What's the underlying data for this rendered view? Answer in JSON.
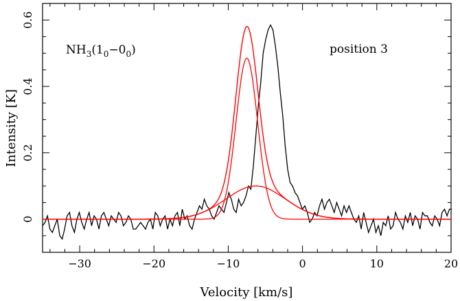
{
  "chart_data": {
    "type": "line",
    "title": "",
    "xlabel": "Velocity [km/s]",
    "ylabel": "Intensity [K]",
    "xlim": [
      -35,
      20
    ],
    "ylim": [
      -0.1,
      0.65
    ],
    "grid": false,
    "legend": "none",
    "x_ticks": [
      -30,
      -20,
      -10,
      0,
      10,
      20
    ],
    "x_tick_labels": [
      "−30",
      "−20",
      "−10",
      "0",
      "10",
      "20"
    ],
    "y_ticks": [
      0,
      0.2,
      0.4,
      0.6
    ],
    "y_tick_labels": [
      "0",
      "0.2",
      "0.4",
      "0.6"
    ],
    "annotations": {
      "molecule": {
        "base": "NH",
        "sub1": "3",
        "open": "(1",
        "sub2": "0",
        "mid": "−0",
        "sub3": "0",
        "close": ")"
      },
      "position": "position 3"
    },
    "colors": {
      "observed": "#000000",
      "fit": "#ff0000"
    },
    "observed_series": {
      "x_start": -35.0,
      "x_step": 0.33,
      "values": [
        -0.02,
        -0.01,
        0.01,
        -0.03,
        -0.04,
        -0.02,
        0.0,
        -0.05,
        -0.06,
        -0.03,
        0.01,
        0.02,
        -0.02,
        -0.04,
        0.0,
        0.02,
        -0.01,
        -0.03,
        0.0,
        0.02,
        -0.02,
        0.01,
        0.0,
        -0.03,
        0.01,
        0.02,
        0.0,
        -0.02,
        0.01,
        0.0,
        -0.01,
        0.02,
        0.01,
        -0.02,
        -0.01,
        0.01,
        0.0,
        -0.03,
        -0.03,
        -0.02,
        -0.01,
        -0.02,
        -0.03,
        -0.01,
        0.0,
        -0.03,
        0.02,
        0.01,
        -0.02,
        0.0,
        0.01,
        -0.03,
        0.0,
        -0.02,
        0.01,
        0.02,
        -0.02,
        0.03,
        0.0,
        0.01,
        -0.02,
        -0.03,
        0.0,
        0.02,
        0.04,
        0.03,
        0.06,
        0.04,
        0.03,
        0.01,
        0.0,
        0.02,
        0.04,
        0.03,
        0.02,
        0.05,
        0.08,
        0.06,
        0.03,
        0.02,
        0.06,
        0.04,
        0.05,
        0.07,
        0.1,
        0.09,
        0.16,
        0.25,
        0.34,
        0.41,
        0.5,
        0.54,
        0.57,
        0.585,
        0.57,
        0.52,
        0.46,
        0.38,
        0.31,
        0.22,
        0.15,
        0.11,
        0.1,
        0.08,
        0.07,
        0.05,
        0.03,
        0.04,
        0.02,
        -0.01,
        0.0,
        0.02,
        0.01,
        0.04,
        0.06,
        0.03,
        0.05,
        0.06,
        0.04,
        0.02,
        0.05,
        0.03,
        0.01,
        0.04,
        0.02,
        0.04,
        0.02,
        0.0,
        -0.01,
        0.01,
        -0.03,
        0.02,
        -0.01,
        -0.04,
        -0.02,
        0.0,
        -0.04,
        -0.02,
        -0.05,
        -0.01,
        -0.02,
        0.01,
        -0.03,
        -0.02,
        0.02,
        0.0,
        -0.01,
        -0.03,
        0.01,
        -0.01,
        0.02,
        -0.02,
        0.01,
        0.0,
        -0.03,
        0.02,
        0.01,
        0.01,
        -0.01,
        -0.02,
        0.01,
        0.0,
        -0.02,
        0.02,
        0.03,
        0.01,
        0.03,
        0.03
      ]
    },
    "fit_components": [
      {
        "amplitude": 0.485,
        "center": -7.5,
        "sigma": 1.45
      },
      {
        "amplitude": 0.1,
        "center": -6.3,
        "sigma": 4.0
      }
    ]
  }
}
